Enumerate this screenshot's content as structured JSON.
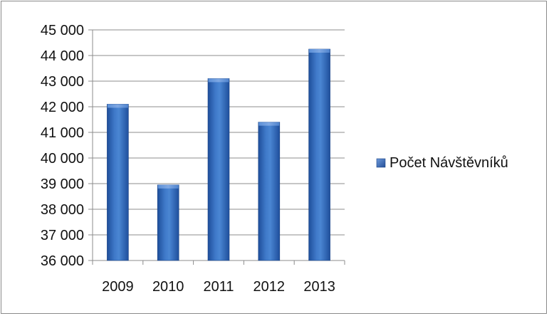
{
  "chart_data": {
    "type": "bar",
    "title": "",
    "xlabel": "",
    "ylabel": "",
    "categories": [
      "2009",
      "2010",
      "2011",
      "2012",
      "2013"
    ],
    "series": [
      {
        "name": "Počet Návštěvníků",
        "values": [
          42100,
          38950,
          43100,
          41400,
          44250
        ],
        "color": "#2E5FAE"
      }
    ],
    "ylim": [
      36000,
      45000
    ],
    "yticks": [
      36000,
      37000,
      38000,
      39000,
      40000,
      41000,
      42000,
      43000,
      44000,
      45000
    ],
    "ytick_labels": [
      "36 000",
      "37 000",
      "38 000",
      "39 000",
      "40 000",
      "41 000",
      "42 000",
      "43 000",
      "44 000",
      "45 000"
    ],
    "grid": true,
    "legend_position": "right"
  }
}
